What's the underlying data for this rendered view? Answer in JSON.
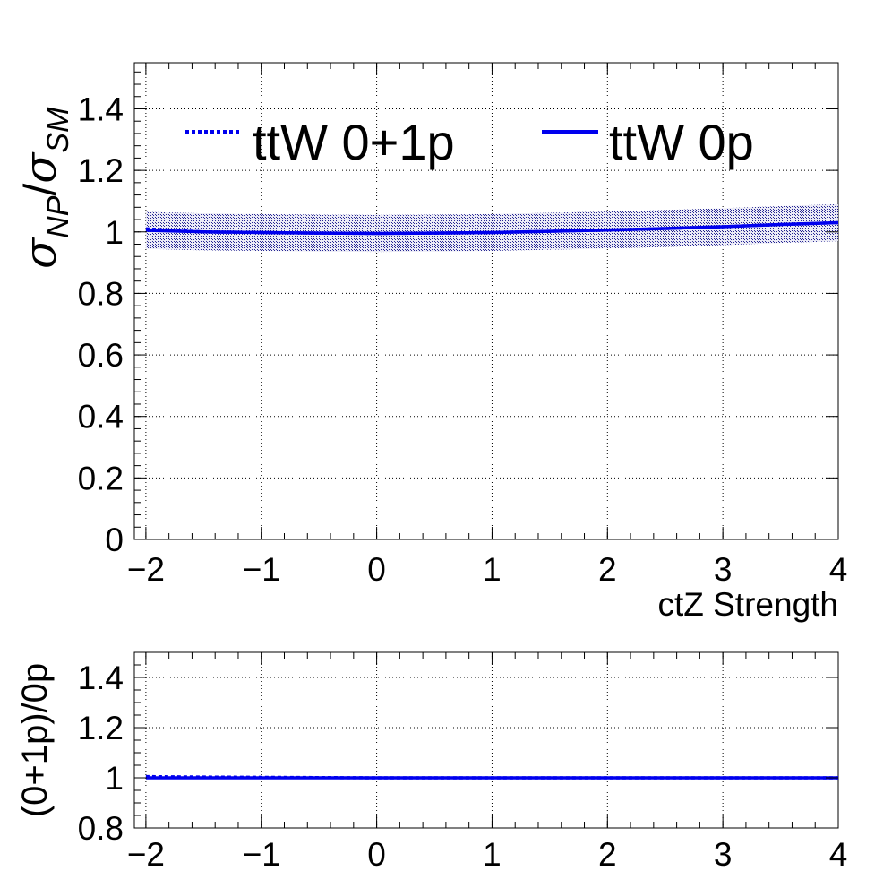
{
  "chart_data": [
    {
      "type": "line",
      "panel": "main",
      "xlabel": "ctZ Strength",
      "ylabel": "σ_NP/σ_SM",
      "xlim": [
        -2.1,
        4.0
      ],
      "ylim": [
        0,
        1.55
      ],
      "xticks": [
        "−2",
        "−1",
        "0",
        "1",
        "2",
        "3",
        "4"
      ],
      "yticks": [
        "0",
        "0.2",
        "0.4",
        "0.6",
        "0.8",
        "1",
        "1.2",
        "1.4"
      ],
      "grid": true,
      "legend_position": "top",
      "x": [
        -2.0,
        -1.5,
        -1.0,
        -0.5,
        0.0,
        0.5,
        1.0,
        1.5,
        2.0,
        2.5,
        3.0,
        3.5,
        4.0
      ],
      "series": [
        {
          "name": "ttW 0+1p",
          "style": "dotted",
          "color": "#0000ee",
          "values": [
            1.01,
            1.0,
            0.998,
            0.996,
            0.995,
            0.996,
            0.998,
            1.002,
            1.006,
            1.011,
            1.017,
            1.024,
            1.03
          ]
        },
        {
          "name": "ttW 0p",
          "style": "solid",
          "color": "#0000ee",
          "values": [
            1.005,
            1.0,
            0.998,
            0.996,
            0.995,
            0.996,
            0.998,
            1.002,
            1.006,
            1.011,
            1.017,
            1.024,
            1.03
          ]
        }
      ],
      "uncertainty_band": {
        "color": "#000080",
        "lower_offset": -0.06,
        "upper_offset": 0.06
      }
    },
    {
      "type": "line",
      "panel": "ratio",
      "xlabel": "",
      "ylabel": "(0+1p)/0p",
      "xlim": [
        -2.1,
        4.0
      ],
      "ylim": [
        0.8,
        1.5
      ],
      "xticks": [
        "−2",
        "−1",
        "0",
        "1",
        "2",
        "3",
        "4"
      ],
      "yticks": [
        "0.8",
        "1",
        "1.2",
        "1.4"
      ],
      "grid": true,
      "x": [
        -2.0,
        -1.5,
        -1.0,
        -0.5,
        0.0,
        0.5,
        1.0,
        1.5,
        2.0,
        2.5,
        3.0,
        3.5,
        4.0
      ],
      "series": [
        {
          "style": "dotted",
          "color": "#0000ee",
          "values": [
            1.005,
            1.003,
            1.002,
            1.001,
            1.0,
            1.0,
            1.0,
            1.0,
            1.0,
            1.0,
            1.0,
            1.0,
            1.0
          ]
        },
        {
          "style": "solid",
          "color": "#0000ee",
          "values": [
            1.0,
            1.0,
            1.0,
            1.0,
            1.0,
            1.0,
            1.0,
            1.0,
            1.0,
            1.0,
            1.0,
            1.0,
            1.0
          ]
        }
      ]
    }
  ]
}
